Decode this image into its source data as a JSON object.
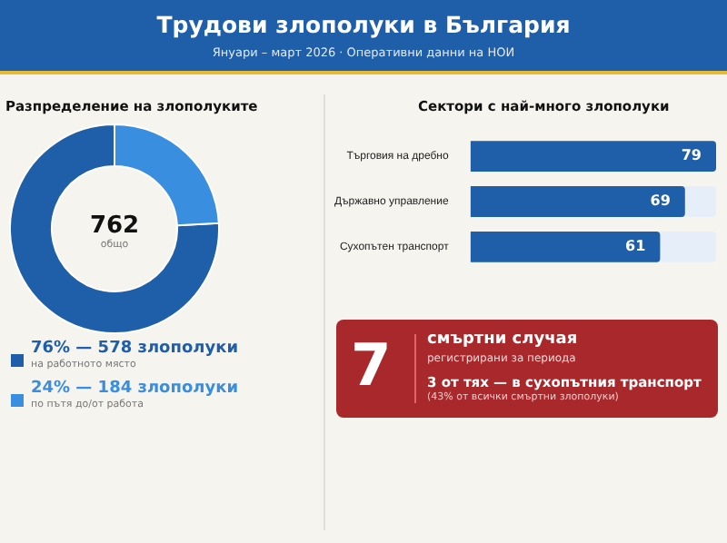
{
  "chart_data": [
    {
      "type": "other",
      "title": "Трудови злополуки в България",
      "subtitle": "Януари – март 2026  ·  Оперативни данни на НОИ"
    },
    {
      "type": "donut",
      "title": "Разпределение на злополуките",
      "categories": [
        "на работното място",
        "по пътя до/от работа"
      ],
      "values": [
        578,
        184
      ],
      "colors": [
        "#1f5ea8",
        "#3a8ee0"
      ],
      "value_labels": [
        "76%  —  578 злополуки",
        "24%  —  184 злополуки"
      ],
      "annotations": [
        "762",
        "общо"
      ],
      "legend": "bottom"
    },
    {
      "type": "bar",
      "orientation": "horizontal",
      "title": "Сектори с най-много злополуки",
      "categories": [
        "Търговия на дребно",
        "Държавно управление",
        "Сухопътен транспорт"
      ],
      "values": [
        79,
        69,
        61
      ],
      "color": "#1f5ea8",
      "data_labels": true
    },
    {
      "type": "other",
      "annotations": [
        "7",
        "смъртни случая",
        "регистрирани за периода",
        "3 от тях — в сухопътния транспорт",
        "(43% от всички смъртни злополуки)"
      ]
    }
  ]
}
